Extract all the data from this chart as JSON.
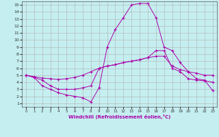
{
  "xlabel": "Windchill (Refroidissement éolien,°C)",
  "background_color": "#c5eef0",
  "grid_color": "#b0b0b0",
  "line_color": "#aa00aa",
  "xlim": [
    -0.5,
    23.5
  ],
  "ylim": [
    0.5,
    15.5
  ],
  "xticks": [
    0,
    1,
    2,
    3,
    4,
    5,
    6,
    7,
    8,
    9,
    10,
    11,
    12,
    13,
    14,
    15,
    16,
    17,
    18,
    19,
    20,
    21,
    22,
    23
  ],
  "yticks": [
    1,
    2,
    3,
    4,
    5,
    6,
    7,
    8,
    9,
    10,
    11,
    12,
    13,
    14,
    15
  ],
  "line1_x": [
    0,
    1,
    2,
    3,
    4,
    5,
    6,
    7,
    8,
    9,
    10,
    11,
    12,
    13,
    14,
    15,
    16,
    17,
    18,
    19,
    20,
    21,
    22,
    23
  ],
  "line1_y": [
    5.0,
    4.8,
    4.6,
    4.5,
    4.4,
    4.5,
    4.7,
    5.0,
    5.5,
    6.0,
    6.3,
    6.5,
    6.8,
    7.0,
    7.2,
    7.5,
    8.5,
    8.5,
    6.0,
    5.5,
    4.5,
    4.3,
    4.2,
    4.0
  ],
  "line2_x": [
    0,
    1,
    2,
    3,
    4,
    5,
    6,
    7,
    8,
    9,
    10,
    11,
    12,
    13,
    14,
    15,
    16,
    17,
    18,
    19,
    20,
    21,
    22,
    23
  ],
  "line2_y": [
    5.0,
    4.7,
    4.3,
    3.5,
    3.0,
    3.0,
    3.0,
    3.2,
    3.5,
    6.0,
    6.3,
    6.5,
    6.8,
    7.0,
    7.2,
    7.5,
    7.7,
    7.7,
    6.3,
    5.8,
    5.5,
    5.3,
    5.0,
    5.0
  ],
  "line3_x": [
    0,
    1,
    2,
    3,
    4,
    5,
    6,
    7,
    8,
    9,
    10,
    11,
    12,
    13,
    14,
    15,
    16,
    17,
    18,
    19,
    20,
    21,
    22,
    23
  ],
  "line3_y": [
    5.0,
    4.7,
    3.5,
    3.0,
    2.5,
    2.2,
    2.0,
    1.8,
    1.2,
    3.2,
    9.0,
    11.5,
    13.2,
    15.0,
    15.2,
    15.2,
    13.2,
    9.0,
    8.5,
    6.8,
    5.5,
    4.5,
    4.3,
    2.8
  ]
}
